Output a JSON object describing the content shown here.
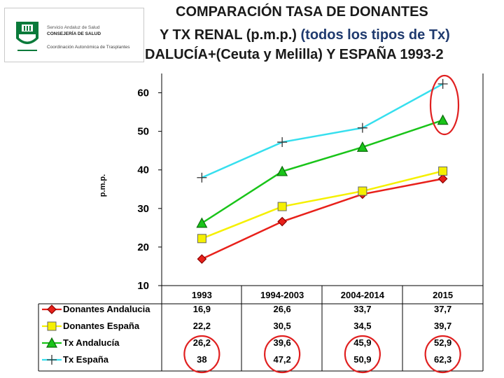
{
  "logo": {
    "line1": "Servicio Andaluz de Salud",
    "line2": "CONSEJERÍA DE SALUD",
    "line3": "Coordinación Autonómica de Trasplantes"
  },
  "title": {
    "line1": "COMPARACIÓN TASA DE DONANTES",
    "line2_a": "Y TX RENAL (p.m.p.) ",
    "line2_b": "(todos los tipos de Tx)",
    "line3": "DALUCÍA+(Ceuta y Melilla) Y ESPAÑA 1993-2"
  },
  "colors": {
    "donantes_andalucia": "#e8201a",
    "donantes_espana": "#f5f000",
    "tx_andalucia": "#19c419",
    "tx_espana": "#36dfee",
    "highlight_circle": "#e02020"
  },
  "chart_data": {
    "type": "line",
    "ylabel": "p.m.p.",
    "ylim": [
      10,
      65
    ],
    "yticks": [
      "10",
      "20",
      "30",
      "40",
      "50",
      "60"
    ],
    "categories": [
      "1993",
      "1994-2003",
      "2004-2014",
      "2015"
    ],
    "grid": "vertical separators only",
    "legend": "data table below the plot",
    "series": [
      {
        "name": "Donantes Andalucia",
        "marker": "diamond",
        "values": [
          16.9,
          26.6,
          33.7,
          37.7
        ],
        "labels": [
          "16,9",
          "26,6",
          "33,7",
          "37,7"
        ]
      },
      {
        "name": "Donantes España",
        "marker": "square",
        "values": [
          22.2,
          30.5,
          34.5,
          39.7
        ],
        "labels": [
          "22,2",
          "30,5",
          "34,5",
          "39,7"
        ]
      },
      {
        "name": "Tx Andalucía",
        "marker": "triangle",
        "values": [
          26.2,
          39.6,
          45.9,
          52.9
        ],
        "labels": [
          "26,2",
          "39,6",
          "45,9",
          "52,9"
        ]
      },
      {
        "name": "Tx España",
        "marker": "plus",
        "values": [
          38,
          47.2,
          50.9,
          62.3
        ],
        "labels": [
          "38",
          "47,2",
          "50,9",
          "62,3"
        ]
      }
    ]
  }
}
